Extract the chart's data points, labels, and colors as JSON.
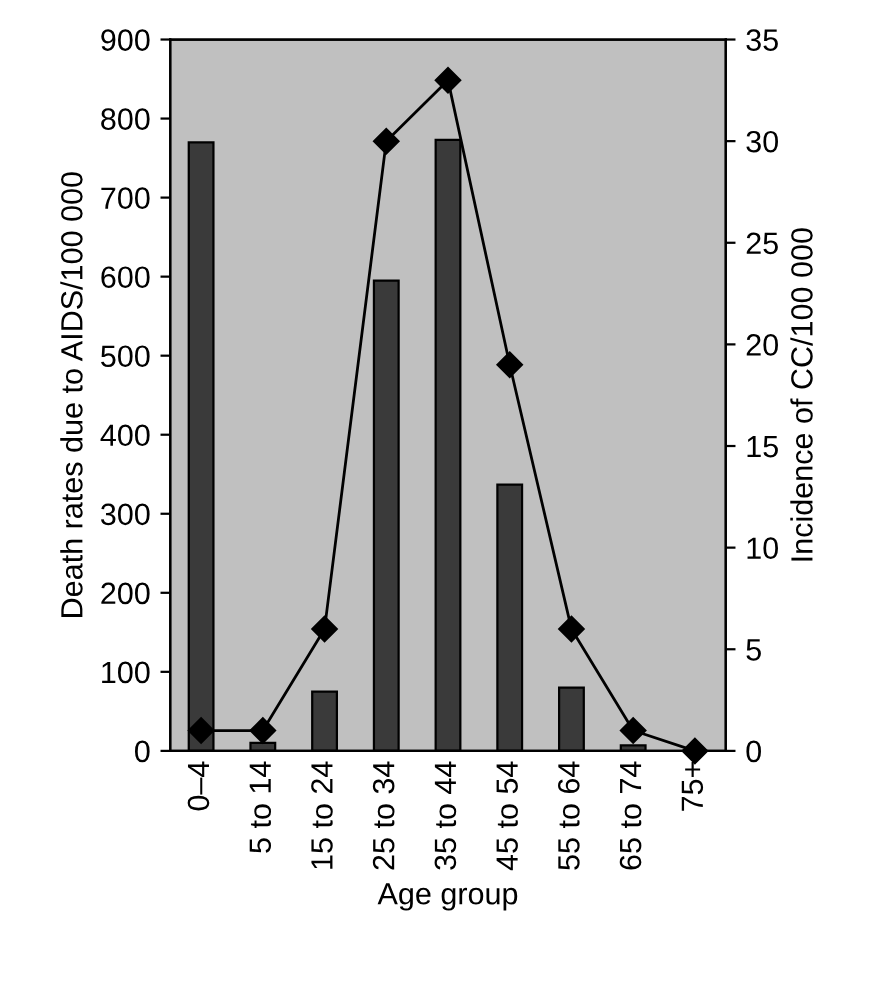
{
  "chart_data": {
    "type": "bar",
    "xlabel": "Age group",
    "ylabel": "Death rates due to AIDS/100 000",
    "y2label": "Incidence of CC/100 000",
    "categories": [
      "0–4",
      "5 to 14",
      "15 to 24",
      "25 to 34",
      "35 to 44",
      "45 to 54",
      "55 to 64",
      "65 to 74",
      "75+"
    ],
    "series": [
      {
        "color": "#3a3a3a",
        "values": [
          770,
          10,
          75,
          595,
          773,
          337,
          80,
          7,
          0
        ]
      },
      {
        "type": "line",
        "axis": "y2",
        "color": "#000000",
        "marker": "diamond",
        "values": [
          1,
          1,
          6,
          30,
          33,
          19,
          6,
          1,
          0
        ]
      }
    ],
    "ylim": [
      0,
      900
    ],
    "yticks": [
      0,
      100,
      200,
      300,
      400,
      500,
      600,
      700,
      800,
      900
    ],
    "y2lim": [
      0,
      35
    ],
    "y2ticks": [
      0,
      5,
      10,
      15,
      20,
      25,
      30,
      35
    ],
    "grid": false,
    "legend": false
  }
}
